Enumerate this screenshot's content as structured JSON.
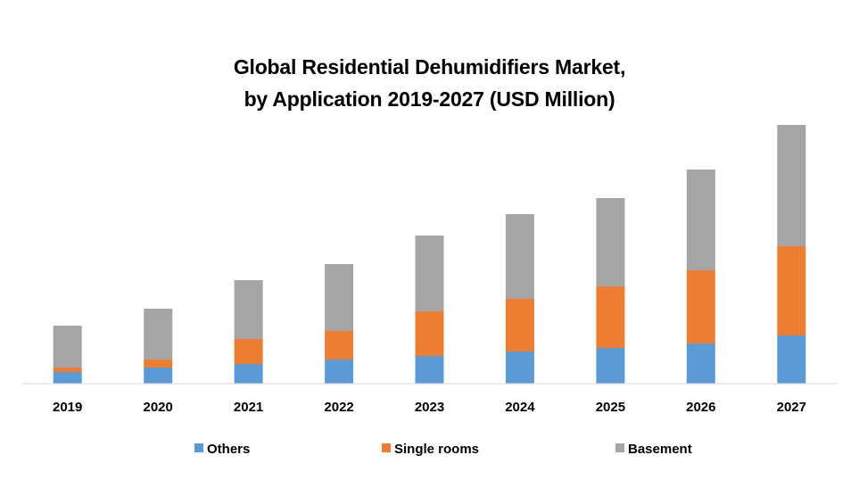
{
  "chart_data": {
    "type": "bar",
    "stacked": true,
    "title_lines": [
      "Global Residential Dehumidifiers Market,",
      "by Application 2019-2027 (USD Million)"
    ],
    "categories": [
      "2019",
      "2020",
      "2021",
      "2022",
      "2023",
      "2024",
      "2025",
      "2026",
      "2027"
    ],
    "series": [
      {
        "name": "Others",
        "color": "#5B9BD5",
        "values": [
          13,
          18,
          22,
          27,
          31,
          36,
          40,
          45,
          54
        ]
      },
      {
        "name": "Single rooms",
        "color": "#ED7D31",
        "values": [
          5,
          9,
          28,
          32,
          50,
          59,
          69,
          82,
          100
        ]
      },
      {
        "name": "Basement",
        "color": "#A5A5A5",
        "values": [
          47,
          57,
          66,
          75,
          85,
          95,
          99,
          113,
          136
        ]
      }
    ],
    "ylim": [
      0,
      300
    ],
    "grid": false,
    "legend_position": "bottom",
    "axis_color": "#D9D9D9"
  }
}
